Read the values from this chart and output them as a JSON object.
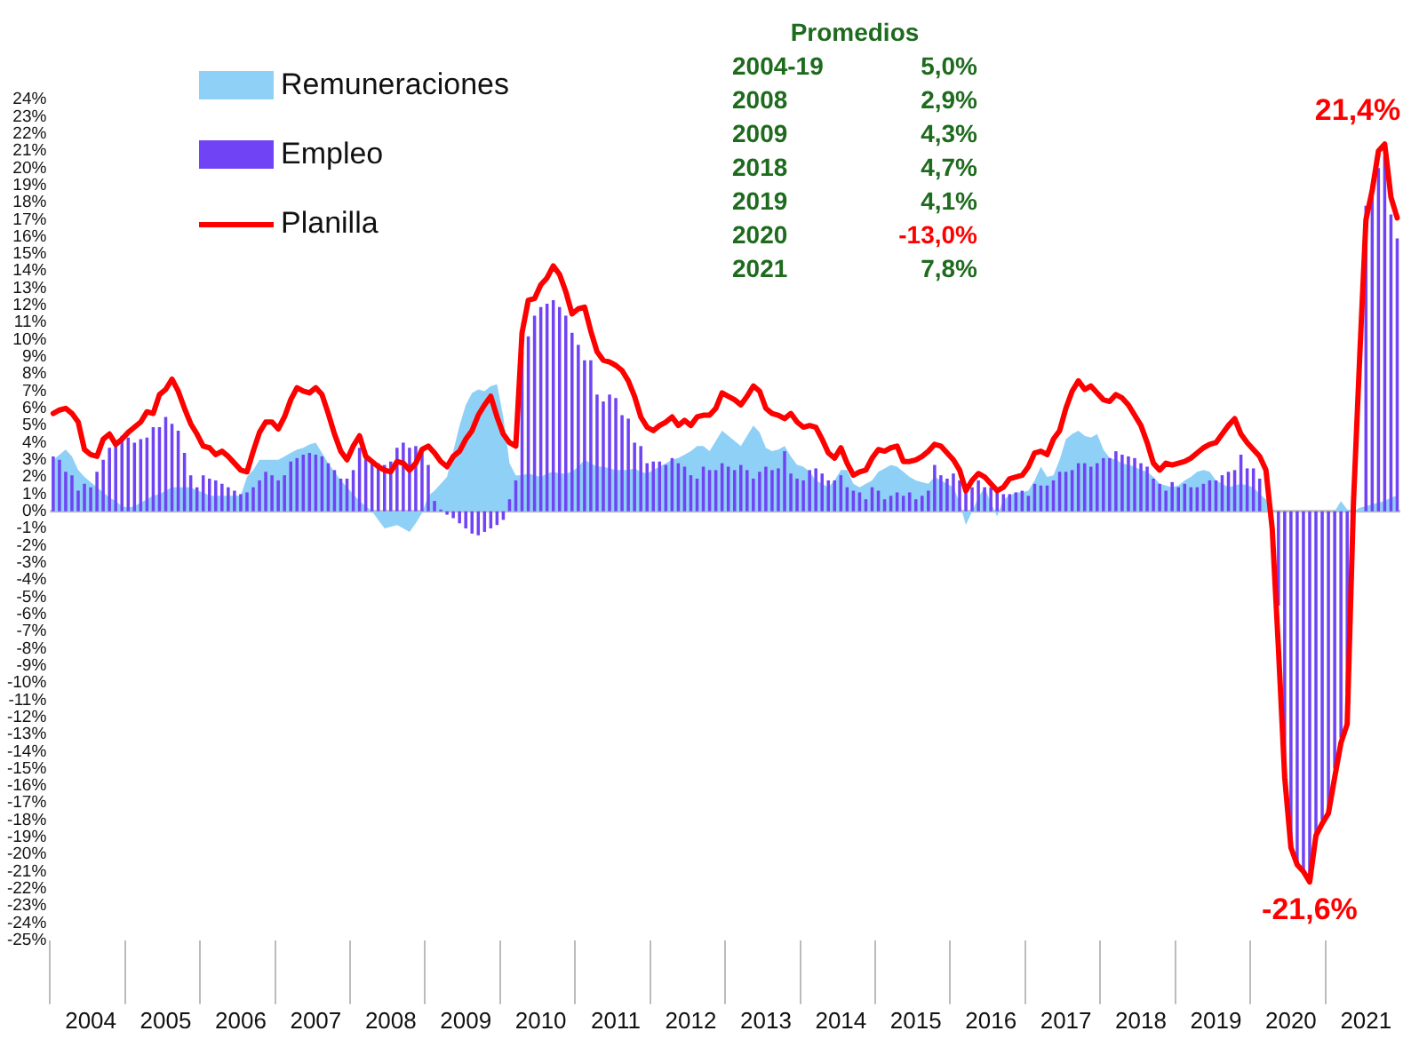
{
  "chart_data": {
    "type": "bar",
    "categories": [
      null,
      null,
      null,
      null,
      null,
      null,
      "2004",
      null,
      null,
      null,
      null,
      null,
      null,
      null,
      null,
      null,
      null,
      null,
      "2005",
      null,
      null,
      null,
      null,
      null,
      null,
      null,
      null,
      null,
      null,
      null,
      "2006",
      null,
      null,
      null,
      null,
      null,
      null,
      null,
      null,
      null,
      null,
      null,
      "2007",
      null,
      null,
      null,
      null,
      null,
      null,
      null,
      null,
      null,
      null,
      null,
      "2008",
      null,
      null,
      null,
      null,
      null,
      null,
      null,
      null,
      null,
      null,
      null,
      "2009",
      null,
      null,
      null,
      null,
      null,
      null,
      null,
      null,
      null,
      null,
      null,
      "2010",
      null,
      null,
      null,
      null,
      null,
      null,
      null,
      null,
      null,
      null,
      null,
      "2011",
      null,
      null,
      null,
      null,
      null,
      null,
      null,
      null,
      null,
      null,
      null,
      "2012",
      null,
      null,
      null,
      null,
      null,
      null,
      null,
      null,
      null,
      null,
      null,
      "2013",
      null,
      null,
      null,
      null,
      null,
      null,
      null,
      null,
      null,
      null,
      null,
      "2014",
      null,
      null,
      null,
      null,
      null,
      null,
      null,
      null,
      null,
      null,
      null,
      "2015",
      null,
      null,
      null,
      null,
      null,
      null,
      null,
      null,
      null,
      null,
      null,
      "2016",
      null,
      null,
      null,
      null,
      null,
      null,
      null,
      null,
      null,
      null,
      null,
      "2017",
      null,
      null,
      null,
      null,
      null,
      null,
      null,
      null,
      null,
      null,
      null,
      "2018",
      null,
      null,
      null,
      null,
      null,
      null,
      null,
      null,
      null,
      null,
      null,
      "2019",
      null,
      null,
      null,
      null,
      null,
      null,
      null,
      null,
      null,
      null,
      null,
      "2020",
      null,
      null,
      null,
      null,
      null,
      null,
      null,
      null,
      null,
      null,
      null,
      "2021",
      null,
      null,
      null,
      null,
      null
    ],
    "series": [
      {
        "name": "Remuneraciones",
        "type": "area",
        "color": "#8fd0f7",
        "values": [
          3.0,
          3.3,
          3.6,
          3.2,
          2.4,
          2.0,
          1.7,
          1.4,
          1.1,
          0.8,
          0.6,
          0.3,
          0.2,
          0.3,
          0.5,
          0.7,
          0.9,
          1.0,
          1.2,
          1.4,
          1.4,
          1.4,
          1.4,
          1.2,
          1.1,
          0.9,
          0.9,
          0.9,
          0.9,
          0.9,
          0.9,
          2.0,
          2.4,
          3.0,
          3.0,
          3.0,
          3.0,
          3.2,
          3.4,
          3.6,
          3.7,
          3.9,
          4.0,
          3.4,
          2.8,
          2.3,
          1.8,
          1.4,
          1.0,
          0.6,
          0.3,
          0.0,
          -0.5,
          -1.0,
          -0.9,
          -0.8,
          -1.0,
          -1.2,
          -0.7,
          -0.1,
          0.9,
          1.2,
          1.6,
          2.0,
          3.5,
          5.0,
          6.2,
          6.9,
          7.1,
          7.0,
          7.3,
          7.4,
          5.5,
          2.8,
          2.1,
          2.1,
          2.2,
          2.1,
          2.0,
          2.2,
          2.3,
          2.2,
          2.2,
          2.3,
          2.6,
          3.0,
          2.8,
          2.6,
          2.6,
          2.5,
          2.4,
          2.4,
          2.4,
          2.5,
          2.3,
          2.2,
          2.4,
          2.6,
          2.8,
          3.0,
          3.1,
          3.3,
          3.5,
          3.8,
          3.8,
          3.5,
          4.1,
          4.7,
          4.4,
          4.1,
          3.8,
          4.4,
          5.0,
          4.6,
          3.7,
          3.5,
          3.6,
          3.8,
          3.2,
          2.7,
          2.6,
          2.3,
          1.8,
          1.6,
          1.4,
          1.8,
          2.4,
          2.4,
          1.6,
          1.4,
          1.6,
          1.8,
          2.3,
          2.5,
          2.7,
          2.6,
          2.3,
          2.0,
          1.8,
          1.7,
          1.6,
          2.0,
          1.8,
          1.6,
          1.4,
          0.5,
          -0.8,
          0.0,
          0.8,
          1.4,
          0.5,
          -0.3,
          0.7,
          0.9,
          1.1,
          1.1,
          1.2,
          1.8,
          2.6,
          2.0,
          2.1,
          3.0,
          4.2,
          4.5,
          4.7,
          4.4,
          4.3,
          4.5,
          3.6,
          3.1,
          3.0,
          2.8,
          2.7,
          2.6,
          2.4,
          2.3,
          2.0,
          1.6,
          1.5,
          1.4,
          1.5,
          1.8,
          2.0,
          2.3,
          2.4,
          2.3,
          1.8,
          1.6,
          1.4,
          1.5,
          1.6,
          1.5,
          1.4,
          1.0,
          0.7,
          0.0,
          0.0,
          0.0,
          0.0,
          0.0,
          0.0,
          0.0,
          0.0,
          0.0,
          0.0,
          0.0,
          0.6,
          0.1,
          0.0,
          0.2,
          0.3,
          0.4,
          0.5,
          0.6,
          0.8,
          0.9
        ]
      },
      {
        "name": "Empleo",
        "color": "#7043f5",
        "values": [
          3.2,
          3.0,
          2.3,
          2.1,
          1.2,
          1.6,
          1.4,
          2.3,
          3.0,
          3.7,
          4.1,
          4.4,
          4.3,
          4.0,
          4.2,
          4.3,
          4.9,
          4.9,
          5.5,
          5.1,
          4.7,
          3.4,
          2.1,
          1.4,
          2.1,
          1.9,
          1.8,
          1.6,
          1.4,
          1.2,
          1.0,
          1.1,
          1.4,
          1.8,
          2.3,
          2.1,
          1.8,
          2.1,
          2.9,
          3.1,
          3.3,
          3.4,
          3.3,
          3.2,
          2.8,
          2.4,
          1.9,
          1.9,
          2.4,
          3.7,
          3.3,
          2.9,
          2.8,
          2.7,
          2.9,
          3.7,
          4.0,
          3.7,
          3.8,
          3.7,
          2.7,
          0.6,
          0.1,
          -0.2,
          -0.4,
          -0.7,
          -1.0,
          -1.3,
          -1.4,
          -1.2,
          -1.0,
          -0.8,
          -0.5,
          0.7,
          1.8,
          9.3,
          10.2,
          11.4,
          11.9,
          12.1,
          12.3,
          11.9,
          11.4,
          10.4,
          9.7,
          8.8,
          8.8,
          6.8,
          6.4,
          6.8,
          6.6,
          5.6,
          5.4,
          4.0,
          3.8,
          2.8,
          2.9,
          2.9,
          2.7,
          3.1,
          2.8,
          2.6,
          2.1,
          1.9,
          2.6,
          2.4,
          2.4,
          2.8,
          2.6,
          2.4,
          2.7,
          2.4,
          1.9,
          2.3,
          2.6,
          2.4,
          2.5,
          3.5,
          2.2,
          1.9,
          1.8,
          2.4,
          2.5,
          2.2,
          1.8,
          1.8,
          2.1,
          1.4,
          1.2,
          1.1,
          0.7,
          1.4,
          1.2,
          0.7,
          0.9,
          1.1,
          0.9,
          1.1,
          0.7,
          0.9,
          1.2,
          2.7,
          2.1,
          1.9,
          2.2,
          1.8,
          1.2,
          1.4,
          1.8,
          1.4,
          1.4,
          1.2,
          1.0,
          1.0,
          1.1,
          1.2,
          0.9,
          1.6,
          1.5,
          1.5,
          1.8,
          2.3,
          2.3,
          2.4,
          2.8,
          2.8,
          2.6,
          2.8,
          3.1,
          3.1,
          3.5,
          3.3,
          3.2,
          3.1,
          2.8,
          2.6,
          1.9,
          1.6,
          1.2,
          1.7,
          1.4,
          1.6,
          1.4,
          1.4,
          1.6,
          1.8,
          1.8,
          2.1,
          2.3,
          2.4,
          3.3,
          2.5,
          2.5,
          1.9,
          null,
          null,
          -5.5,
          -16.0,
          -19.5,
          -20.5,
          -21.0,
          -21.3,
          -19.0,
          -18.0,
          -17.3,
          -15.0,
          -13.2,
          -10.5,
          null,
          null,
          17.8,
          18.7,
          20.0,
          20.7,
          17.3,
          15.9
        ]
      },
      {
        "name": "Planilla",
        "type": "line",
        "color": "#ff0000",
        "values": [
          5.7,
          5.9,
          6.0,
          5.7,
          5.2,
          3.6,
          3.3,
          3.2,
          4.2,
          4.5,
          3.9,
          4.2,
          4.6,
          4.9,
          5.2,
          5.8,
          5.7,
          6.8,
          7.1,
          7.7,
          7.0,
          6.0,
          5.1,
          4.5,
          3.8,
          3.7,
          3.3,
          3.5,
          3.2,
          2.8,
          2.4,
          2.3,
          3.5,
          4.6,
          5.2,
          5.2,
          4.8,
          5.5,
          6.5,
          7.2,
          7.0,
          6.9,
          7.2,
          6.8,
          5.7,
          4.5,
          3.5,
          3.0,
          3.8,
          4.4,
          3.2,
          2.9,
          2.6,
          2.4,
          2.3,
          2.9,
          2.8,
          2.4,
          2.8,
          3.6,
          3.8,
          3.4,
          2.9,
          2.6,
          3.2,
          3.5,
          4.2,
          4.7,
          5.6,
          6.2,
          6.7,
          5.5,
          4.5,
          4.0,
          3.8,
          10.4,
          12.3,
          12.4,
          13.2,
          13.6,
          14.3,
          13.8,
          12.8,
          11.5,
          11.8,
          11.9,
          10.5,
          9.3,
          8.8,
          8.7,
          8.5,
          8.2,
          7.6,
          6.7,
          5.5,
          4.9,
          4.7,
          5.0,
          5.2,
          5.5,
          5.0,
          5.3,
          5.0,
          5.5,
          5.6,
          5.6,
          6.0,
          6.9,
          6.7,
          6.5,
          6.2,
          6.7,
          7.3,
          7.0,
          6.0,
          5.7,
          5.6,
          5.4,
          5.7,
          5.2,
          4.9,
          5.0,
          4.9,
          4.2,
          3.4,
          3.1,
          3.7,
          2.8,
          2.1,
          2.3,
          2.4,
          3.1,
          3.6,
          3.5,
          3.7,
          3.8,
          2.9,
          2.9,
          3.0,
          3.2,
          3.5,
          3.9,
          3.8,
          3.4,
          3.0,
          2.4,
          1.2,
          1.8,
          2.2,
          2.0,
          1.6,
          1.2,
          1.4,
          1.9,
          2.0,
          2.1,
          2.6,
          3.4,
          3.5,
          3.3,
          4.2,
          4.7,
          6.0,
          7.0,
          7.6,
          7.1,
          7.3,
          6.9,
          6.5,
          6.4,
          6.8,
          6.6,
          6.2,
          5.6,
          5.0,
          4.0,
          2.8,
          2.4,
          2.8,
          2.7,
          2.8,
          2.9,
          3.1,
          3.4,
          3.7,
          3.9,
          4.0,
          4.5,
          5.0,
          5.4,
          4.5,
          4.0,
          3.6,
          3.2,
          2.4,
          -1.0,
          -8.0,
          -15.5,
          -19.6,
          -20.6,
          -21.0,
          -21.6,
          -18.9,
          -18.2,
          -17.6,
          -15.5,
          -13.5,
          -12.4,
          0.5,
          9.0,
          17.0,
          18.7,
          21.0,
          21.4,
          18.3,
          17.1
        ],
        "value_labels": [
          null,
          null,
          null,
          null,
          null,
          null,
          null,
          null,
          null,
          null,
          null,
          null,
          null,
          null,
          null,
          null,
          null,
          null,
          null,
          null,
          null,
          null,
          null,
          null,
          null,
          null,
          null,
          null,
          null,
          null,
          null,
          null,
          null,
          null,
          null,
          null,
          null,
          null,
          null,
          null,
          null,
          null,
          null,
          null,
          null,
          null,
          null,
          null,
          null,
          null,
          null,
          null,
          null,
          null,
          null,
          null,
          null,
          null,
          null,
          null,
          null,
          null,
          null,
          null,
          null,
          null,
          null,
          null,
          null,
          null,
          null,
          null,
          null,
          null,
          null,
          null,
          null,
          null,
          null,
          null,
          null,
          null,
          null,
          null,
          null,
          null,
          null,
          null,
          null,
          null,
          null,
          null,
          null,
          null,
          null,
          null,
          null,
          null,
          null,
          null,
          null,
          null,
          null,
          null,
          null,
          null,
          null,
          null,
          null,
          null,
          null,
          null,
          null,
          null,
          null,
          null,
          null,
          null,
          null,
          null,
          null,
          null,
          null,
          null,
          null,
          null,
          null,
          null,
          null,
          null,
          null,
          null,
          null,
          null,
          null,
          null,
          null,
          null,
          null,
          null,
          null,
          null,
          null,
          null,
          null,
          null,
          null,
          null,
          null,
          null,
          null,
          null,
          null,
          null,
          null,
          null,
          null,
          null,
          null,
          null,
          null,
          null,
          null,
          null,
          null,
          null,
          null,
          null,
          null,
          null,
          null,
          null,
          null,
          null,
          null,
          null,
          null,
          null,
          null,
          null,
          null,
          null,
          null,
          null,
          null,
          null,
          null,
          null,
          null,
          null,
          null,
          null,
          null,
          null,
          null,
          null,
          null,
          null,
          null,
          null,
          null,
          "-21,6%",
          null,
          null,
          null,
          null,
          null,
          null,
          null,
          null,
          null,
          null,
          null,
          "21,4%",
          null,
          null
        ]
      }
    ],
    "ylim": [
      -25,
      24
    ],
    "yticks": [
      {
        "value": -25,
        "label": "-25%"
      },
      {
        "value": -24,
        "label": "-24%"
      },
      {
        "value": -23,
        "label": "-23%"
      },
      {
        "value": -22,
        "label": "-22%"
      },
      {
        "value": -21,
        "label": "-21%"
      },
      {
        "value": -20,
        "label": "-20%"
      },
      {
        "value": -19,
        "label": "-19%"
      },
      {
        "value": -18,
        "label": "-18%"
      },
      {
        "value": -17,
        "label": "-17%"
      },
      {
        "value": -16,
        "label": "-16%"
      },
      {
        "value": -15,
        "label": "-15%"
      },
      {
        "value": -14,
        "label": "-14%"
      },
      {
        "value": -13,
        "label": "-13%"
      },
      {
        "value": -12,
        "label": "-12%"
      },
      {
        "value": -11,
        "label": "-11%"
      },
      {
        "value": -10,
        "label": "-10%"
      },
      {
        "value": -9,
        "label": "-9%"
      },
      {
        "value": -8,
        "label": "-8%"
      },
      {
        "value": -7,
        "label": "-7%"
      },
      {
        "value": -6,
        "label": "-6%"
      },
      {
        "value": -5,
        "label": "-5%"
      },
      {
        "value": -4,
        "label": "-4%"
      },
      {
        "value": -3,
        "label": "-3%"
      },
      {
        "value": -2,
        "label": "-2%"
      },
      {
        "value": -1,
        "label": "-1%"
      },
      {
        "value": 0,
        "label": "0%"
      },
      {
        "value": 1,
        "label": "1%"
      },
      {
        "value": 2,
        "label": "2%"
      },
      {
        "value": 3,
        "label": "3%"
      },
      {
        "value": 4,
        "label": "4%"
      },
      {
        "value": 5,
        "label": "5%"
      },
      {
        "value": 6,
        "label": "6%"
      },
      {
        "value": 7,
        "label": "7%"
      },
      {
        "value": 8,
        "label": "8%"
      },
      {
        "value": 9,
        "label": "9%"
      },
      {
        "value": 10,
        "label": "10%"
      },
      {
        "value": 11,
        "label": "11%"
      },
      {
        "value": 12,
        "label": "12%"
      },
      {
        "value": 13,
        "label": "13%"
      },
      {
        "value": 14,
        "label": "14%"
      },
      {
        "value": 15,
        "label": "15%"
      },
      {
        "value": 16,
        "label": "16%"
      },
      {
        "value": 17,
        "label": "17%"
      },
      {
        "value": 18,
        "label": "18%"
      },
      {
        "value": 19,
        "label": "19%"
      },
      {
        "value": 20,
        "label": "20%"
      },
      {
        "value": 21,
        "label": "21%"
      },
      {
        "value": 22,
        "label": "22%"
      },
      {
        "value": 23,
        "label": "23%"
      },
      {
        "value": 24,
        "label": "24%"
      }
    ],
    "legend": "top left",
    "annotations": [
      "Promedios",
      "2004-19",
      "5,0%",
      "2008",
      "2,9%",
      "2009",
      "4,3%",
      "2018",
      "4,7%",
      "2019",
      "4,1%",
      "2020",
      "-13,0%",
      "2021",
      "7,8%"
    ]
  }
}
